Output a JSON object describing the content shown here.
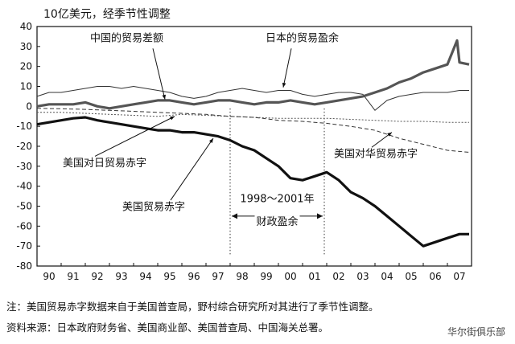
{
  "chart_data": {
    "type": "line",
    "unit_label": "10亿美元，经季节性调整",
    "ylim": [
      -80,
      40
    ],
    "yticks": [
      40,
      30,
      20,
      10,
      0,
      -10,
      -20,
      -30,
      -40,
      -50,
      -60,
      -70,
      -80
    ],
    "xlim": [
      1990,
      2008
    ],
    "xtick_labels": [
      "90",
      "91",
      "92",
      "93",
      "94",
      "95",
      "96",
      "97",
      "98",
      "99",
      "00",
      "01",
      "02",
      "03",
      "04",
      "05",
      "06",
      "07"
    ],
    "series": [
      {
        "name": "美国贸易赤字",
        "style": "thick",
        "points": [
          [
            1990,
            -9
          ],
          [
            1990.5,
            -8
          ],
          [
            1991,
            -7
          ],
          [
            1991.5,
            -6
          ],
          [
            1992,
            -5.5
          ],
          [
            1992.5,
            -7
          ],
          [
            1993,
            -8
          ],
          [
            1993.5,
            -9
          ],
          [
            1994,
            -10
          ],
          [
            1994.5,
            -11
          ],
          [
            1995,
            -12
          ],
          [
            1995.5,
            -12
          ],
          [
            1996,
            -13
          ],
          [
            1996.5,
            -13
          ],
          [
            1997,
            -14
          ],
          [
            1997.5,
            -15
          ],
          [
            1998,
            -17
          ],
          [
            1998.5,
            -20
          ],
          [
            1999,
            -22
          ],
          [
            1999.5,
            -26
          ],
          [
            2000,
            -30
          ],
          [
            2000.5,
            -36
          ],
          [
            2001,
            -37
          ],
          [
            2001.5,
            -35
          ],
          [
            2002,
            -33
          ],
          [
            2002.5,
            -37
          ],
          [
            2003,
            -43
          ],
          [
            2003.5,
            -46
          ],
          [
            2004,
            -50
          ],
          [
            2004.5,
            -55
          ],
          [
            2005,
            -60
          ],
          [
            2005.5,
            -65
          ],
          [
            2006,
            -70
          ],
          [
            2006.5,
            -68
          ],
          [
            2007,
            -66
          ],
          [
            2007.5,
            -64
          ],
          [
            2007.9,
            -64
          ]
        ]
      },
      {
        "name": "中国的贸易差额",
        "style": "thick-gray",
        "points": [
          [
            1990,
            0
          ],
          [
            1990.5,
            1
          ],
          [
            1991,
            1
          ],
          [
            1991.5,
            1
          ],
          [
            1992,
            2
          ],
          [
            1992.5,
            0
          ],
          [
            1993,
            -1
          ],
          [
            1993.5,
            0
          ],
          [
            1994,
            1
          ],
          [
            1994.5,
            2
          ],
          [
            1995,
            3
          ],
          [
            1995.5,
            3
          ],
          [
            1996,
            2
          ],
          [
            1996.5,
            1
          ],
          [
            1997,
            2
          ],
          [
            1997.5,
            3
          ],
          [
            1998,
            3
          ],
          [
            1998.5,
            2
          ],
          [
            1999,
            1
          ],
          [
            1999.5,
            2
          ],
          [
            2000,
            2
          ],
          [
            2000.5,
            3
          ],
          [
            2001,
            2
          ],
          [
            2001.5,
            1
          ],
          [
            2002,
            2
          ],
          [
            2002.5,
            3
          ],
          [
            2003,
            4
          ],
          [
            2003.5,
            5
          ],
          [
            2004,
            7
          ],
          [
            2004.5,
            9
          ],
          [
            2005,
            12
          ],
          [
            2005.5,
            14
          ],
          [
            2006,
            17
          ],
          [
            2006.5,
            19
          ],
          [
            2007,
            21
          ],
          [
            2007.4,
            33
          ],
          [
            2007.5,
            22
          ],
          [
            2007.9,
            21
          ]
        ]
      },
      {
        "name": "日本的贸易盈余",
        "style": "thin",
        "points": [
          [
            1990,
            5
          ],
          [
            1990.5,
            7
          ],
          [
            1991,
            7
          ],
          [
            1991.5,
            8
          ],
          [
            1992,
            9
          ],
          [
            1992.5,
            10
          ],
          [
            1993,
            10
          ],
          [
            1993.5,
            9
          ],
          [
            1994,
            10
          ],
          [
            1994.5,
            9
          ],
          [
            1995,
            8
          ],
          [
            1995.5,
            7
          ],
          [
            1996,
            5
          ],
          [
            1996.5,
            4
          ],
          [
            1997,
            5
          ],
          [
            1997.5,
            7
          ],
          [
            1998,
            8
          ],
          [
            1998.5,
            9
          ],
          [
            1999,
            8
          ],
          [
            1999.5,
            7
          ],
          [
            2000,
            8
          ],
          [
            2000.5,
            8
          ],
          [
            2001,
            6
          ],
          [
            2001.5,
            5
          ],
          [
            2002,
            6
          ],
          [
            2002.5,
            7
          ],
          [
            2003,
            7
          ],
          [
            2003.5,
            6
          ],
          [
            2004,
            -2
          ],
          [
            2004.5,
            3
          ],
          [
            2005,
            5
          ],
          [
            2005.5,
            6
          ],
          [
            2006,
            7
          ],
          [
            2006.5,
            7
          ],
          [
            2007,
            7
          ],
          [
            2007.5,
            8
          ],
          [
            2007.9,
            8
          ]
        ]
      },
      {
        "name": "美国对日贸易赤字",
        "style": "dashed-thin",
        "points": [
          [
            1990,
            -3
          ],
          [
            1991,
            -3
          ],
          [
            1992,
            -3.5
          ],
          [
            1993,
            -4
          ],
          [
            1994,
            -4.5
          ],
          [
            1995,
            -5
          ],
          [
            1996,
            -4
          ],
          [
            1997,
            -4.5
          ],
          [
            1998,
            -5
          ],
          [
            1999,
            -5.5
          ],
          [
            2000,
            -6
          ],
          [
            2001,
            -6
          ],
          [
            2002,
            -6
          ],
          [
            2003,
            -6.5
          ],
          [
            2004,
            -7
          ],
          [
            2005,
            -7.5
          ],
          [
            2006,
            -7.5
          ],
          [
            2007,
            -8
          ],
          [
            2007.9,
            -8
          ]
        ]
      },
      {
        "name": "美国对华贸易赤字",
        "style": "dashed",
        "points": [
          [
            1990,
            -1
          ],
          [
            1991,
            -1.2
          ],
          [
            1992,
            -1.5
          ],
          [
            1993,
            -2
          ],
          [
            1994,
            -2.5
          ],
          [
            1995,
            -3
          ],
          [
            1996,
            -3.5
          ],
          [
            1997,
            -4
          ],
          [
            1998,
            -5
          ],
          [
            1999,
            -5.5
          ],
          [
            2000,
            -7
          ],
          [
            2001,
            -7.5
          ],
          [
            2002,
            -8.5
          ],
          [
            2003,
            -10
          ],
          [
            2004,
            -12
          ],
          [
            2005,
            -16
          ],
          [
            2006,
            -19
          ],
          [
            2007,
            -22
          ],
          [
            2007.9,
            -23
          ]
        ]
      }
    ],
    "annotations": {
      "china_label": "中国的贸易差额",
      "japan_label": "日本的贸易盈余",
      "us_japan_label": "美国对日贸易赤字",
      "us_china_label": "美国对华贸易赤字",
      "us_total_label": "美国贸易赤字",
      "surplus_years": "1998～2001年",
      "surplus_text": "财政盈余",
      "surplus_range": [
        1998,
        2001.9
      ]
    },
    "grid": false
  },
  "footer": {
    "note": "注：美国贸易赤字数据来自于美国普查局，野村综合研究所对其进行了季节性调整。",
    "source": "资料来源：日本政府财务省、美国商业部、美国普查局、中国海关总署。",
    "watermark": "华尔街俱乐部"
  }
}
